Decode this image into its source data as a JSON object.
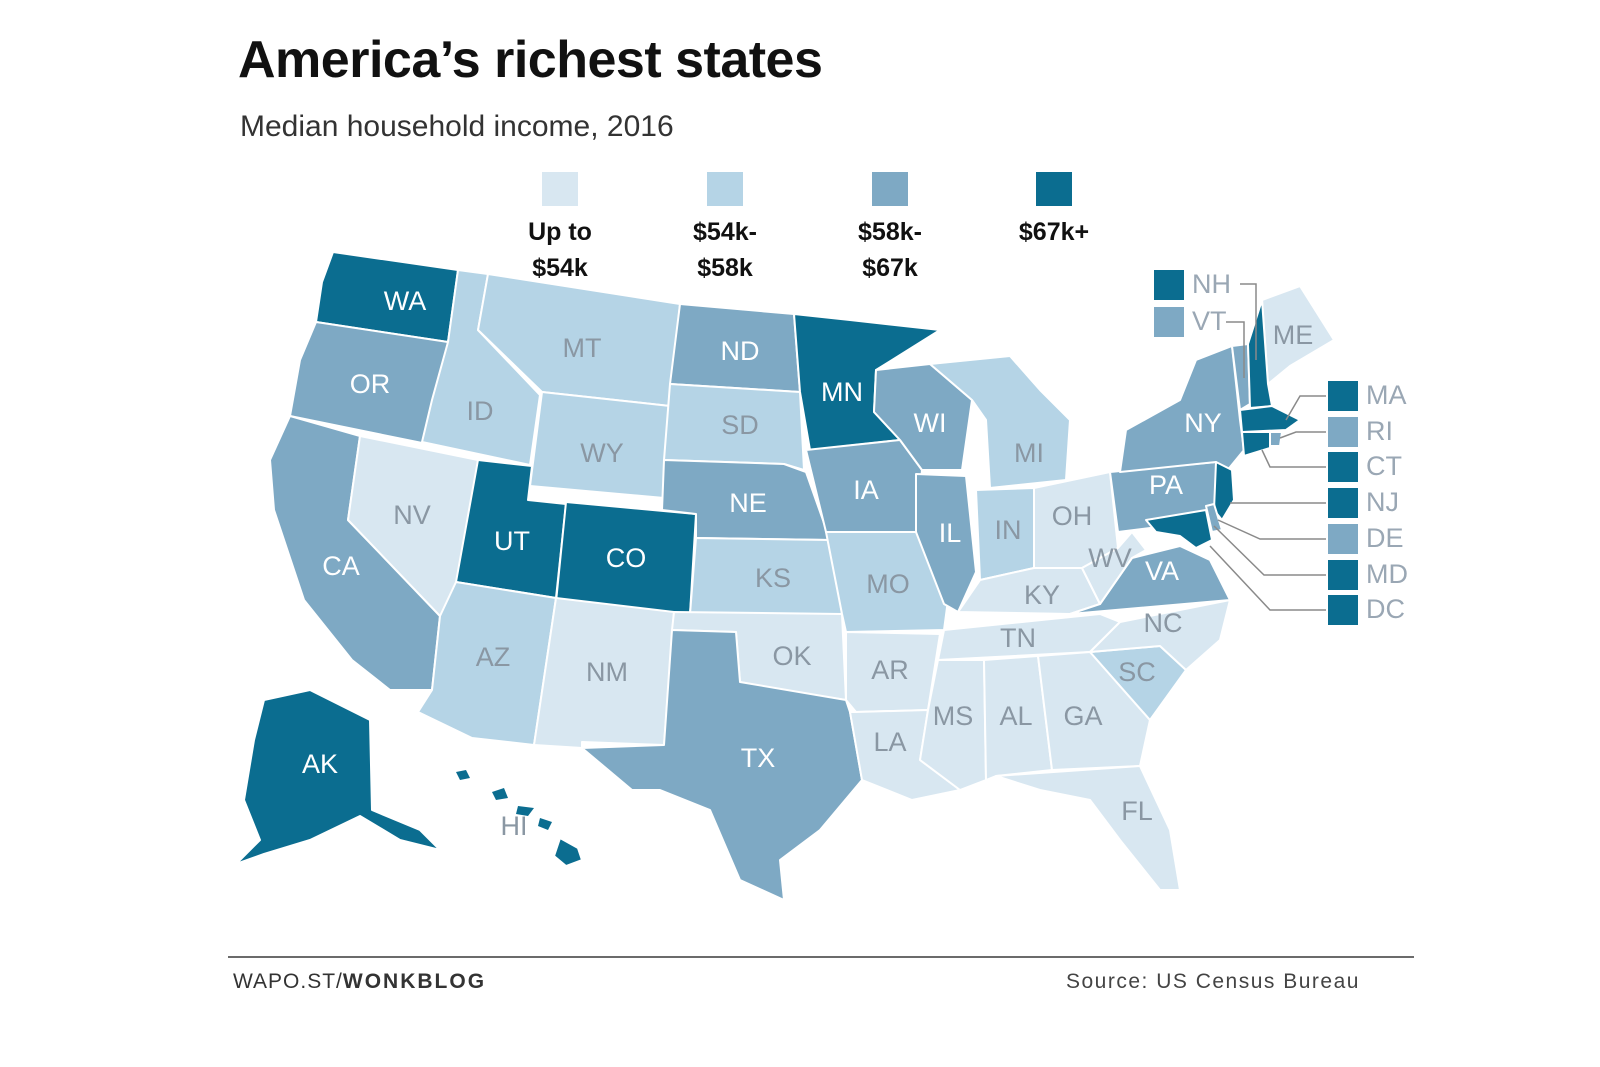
{
  "title": "America’s richest states",
  "subtitle": "Median household income, 2016",
  "legend": [
    {
      "label": "Up to\n$54k",
      "color": "#d8e7f1"
    },
    {
      "label": "$54k-\n$58k",
      "color": "#b5d4e6"
    },
    {
      "label": "$58k-\n$67k",
      "color": "#7ea9c4"
    },
    {
      "label": "$67k+",
      "color": "#0b6d90"
    }
  ],
  "label_colors": {
    "light": "#8a97a3",
    "dark": "#ffffff"
  },
  "states": {
    "WA": {
      "label": "WA",
      "tier": 3
    },
    "OR": {
      "label": "OR",
      "tier": 2
    },
    "CA": {
      "label": "CA",
      "tier": 2
    },
    "NV": {
      "label": "NV",
      "tier": 0
    },
    "ID": {
      "label": "ID",
      "tier": 1
    },
    "MT": {
      "label": "MT",
      "tier": 1
    },
    "WY": {
      "label": "WY",
      "tier": 1
    },
    "UT": {
      "label": "UT",
      "tier": 3
    },
    "CO": {
      "label": "CO",
      "tier": 3
    },
    "AZ": {
      "label": "AZ",
      "tier": 1
    },
    "NM": {
      "label": "NM",
      "tier": 0
    },
    "ND": {
      "label": "ND",
      "tier": 2
    },
    "SD": {
      "label": "SD",
      "tier": 1
    },
    "NE": {
      "label": "NE",
      "tier": 2
    },
    "KS": {
      "label": "KS",
      "tier": 1
    },
    "OK": {
      "label": "OK",
      "tier": 0
    },
    "TX": {
      "label": "TX",
      "tier": 2
    },
    "MN": {
      "label": "MN",
      "tier": 3
    },
    "IA": {
      "label": "IA",
      "tier": 2
    },
    "MO": {
      "label": "MO",
      "tier": 1
    },
    "AR": {
      "label": "AR",
      "tier": 0
    },
    "LA": {
      "label": "LA",
      "tier": 0
    },
    "WI": {
      "label": "WI",
      "tier": 2
    },
    "IL": {
      "label": "IL",
      "tier": 2
    },
    "MI": {
      "label": "MI",
      "tier": 1
    },
    "IN": {
      "label": "IN",
      "tier": 1
    },
    "OH": {
      "label": "OH",
      "tier": 0
    },
    "KY": {
      "label": "KY",
      "tier": 0
    },
    "TN": {
      "label": "TN",
      "tier": 0
    },
    "MS": {
      "label": "MS",
      "tier": 0
    },
    "AL": {
      "label": "AL",
      "tier": 0
    },
    "GA": {
      "label": "GA",
      "tier": 0
    },
    "FL": {
      "label": "FL",
      "tier": 0
    },
    "SC": {
      "label": "SC",
      "tier": 1
    },
    "NC": {
      "label": "NC",
      "tier": 0
    },
    "VA": {
      "label": "VA",
      "tier": 2
    },
    "WV": {
      "label": "WV",
      "tier": 0
    },
    "PA": {
      "label": "PA",
      "tier": 2
    },
    "NY": {
      "label": "NY",
      "tier": 2
    },
    "ME": {
      "label": "ME",
      "tier": 0
    },
    "AK": {
      "label": "AK",
      "tier": 3
    },
    "HI": {
      "label": "HI",
      "tier": 3
    }
  },
  "northeast_callouts": [
    {
      "label": "NH",
      "tier": 3
    },
    {
      "label": "VT",
      "tier": 2
    },
    {
      "label": "MA",
      "tier": 3
    },
    {
      "label": "RI",
      "tier": 2
    },
    {
      "label": "CT",
      "tier": 3
    },
    {
      "label": "NJ",
      "tier": 3
    },
    {
      "label": "DE",
      "tier": 2
    },
    {
      "label": "MD",
      "tier": 3
    },
    {
      "label": "DC",
      "tier": 3
    }
  ],
  "footer": {
    "credit_prefix": "WAPO.ST/",
    "credit_bold": "WONKBLOG",
    "source": "Source: US Census Bureau"
  }
}
